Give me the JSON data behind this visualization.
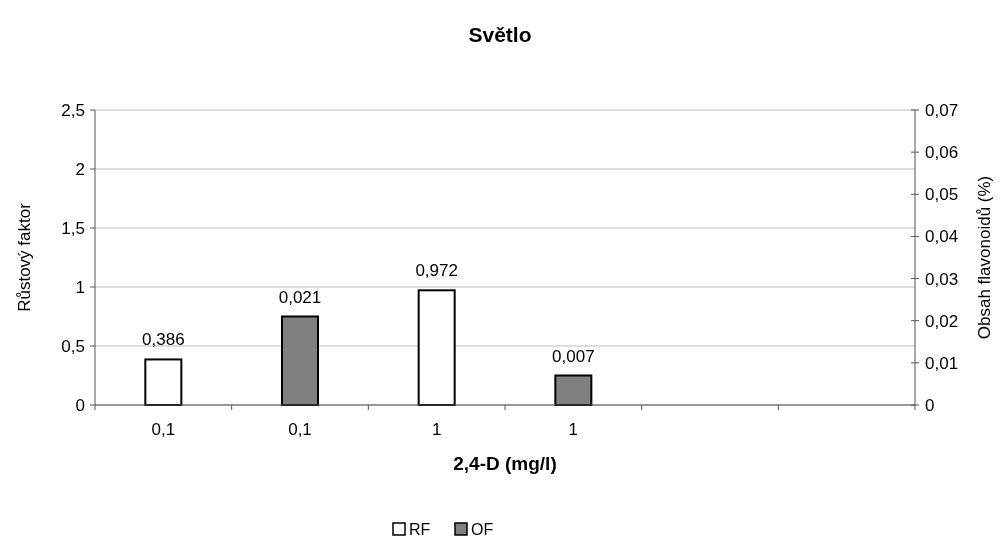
{
  "chart_data": {
    "type": "bar",
    "title": "Světlo",
    "xlabel": "2,4-D (mg/l)",
    "ylabel": "Růstový faktor",
    "y2label": "Obsah flavonoidů (%)",
    "categories": [
      "0,1",
      "0,1",
      "1",
      "1",
      null,
      null
    ],
    "series": [
      {
        "name": "RF",
        "color": "#ffffff",
        "values": [
          0.386,
          null,
          0.972,
          null,
          null,
          null
        ],
        "value_labels": [
          "0,386",
          null,
          "0,972",
          null,
          null,
          null
        ]
      },
      {
        "name": "OF",
        "color": "#808080",
        "axis": "y2",
        "values": [
          null,
          0.021,
          null,
          0.007,
          null,
          null
        ],
        "value_labels": [
          null,
          "0,021",
          null,
          "0,007",
          null,
          null
        ]
      }
    ],
    "ylim": [
      0,
      2.5
    ],
    "yticks": [
      {
        "value": 0,
        "label": "0"
      },
      {
        "value": 0.5,
        "label": "0,5"
      },
      {
        "value": 1,
        "label": "1"
      },
      {
        "value": 1.5,
        "label": "1,5"
      },
      {
        "value": 2,
        "label": "2"
      },
      {
        "value": 2.5,
        "label": "2,5"
      }
    ],
    "y2lim": [
      0,
      0.07
    ],
    "y2ticks": [
      {
        "value": 0,
        "label": "0"
      },
      {
        "value": 0.01,
        "label": "0,01"
      },
      {
        "value": 0.02,
        "label": "0,02"
      },
      {
        "value": 0.03,
        "label": "0,03"
      },
      {
        "value": 0.04,
        "label": "0,04"
      },
      {
        "value": 0.05,
        "label": "0,05"
      },
      {
        "value": 0.06,
        "label": "0,06"
      },
      {
        "value": 0.07,
        "label": "0,07"
      }
    ],
    "grid": "y",
    "legend": "bottom"
  }
}
